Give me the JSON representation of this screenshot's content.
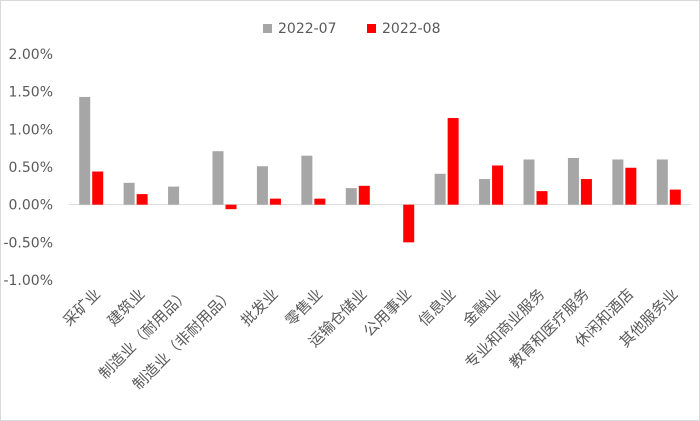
{
  "chart_data": {
    "type": "bar",
    "title": "",
    "xlabel": "",
    "ylabel": "",
    "categories": [
      "采矿业",
      "建筑业",
      "制造业（耐用品）",
      "制造业（非耐用品）",
      "批发业",
      "零售业",
      "运输仓储业",
      "公用事业",
      "信息业",
      "金融业",
      "专业和商业服务",
      "教育和医疗服务",
      "休闲和酒店",
      "其他服务业"
    ],
    "series": [
      {
        "name": "2022-07",
        "color": "#a6a6a6",
        "values": [
          1.43,
          0.29,
          0.24,
          0.71,
          0.51,
          0.65,
          0.22,
          0.0,
          0.41,
          0.34,
          0.6,
          0.62,
          0.6,
          0.6
        ]
      },
      {
        "name": "2022-08",
        "color": "#ff0000",
        "values": [
          0.44,
          0.14,
          0.0,
          -0.06,
          0.08,
          0.08,
          0.25,
          -0.5,
          1.15,
          0.52,
          0.18,
          0.34,
          0.49,
          0.2
        ]
      }
    ],
    "ylim": [
      -1.0,
      2.0
    ],
    "yticks": [
      2.0,
      1.5,
      1.0,
      0.5,
      0.0,
      -0.5,
      -1.0
    ],
    "ytick_labels": [
      "2.00%",
      "1.50%",
      "1.00%",
      "0.50%",
      "0.00%",
      "-0.50%",
      "-1.00%"
    ],
    "grid": false,
    "legend_position": "top"
  }
}
